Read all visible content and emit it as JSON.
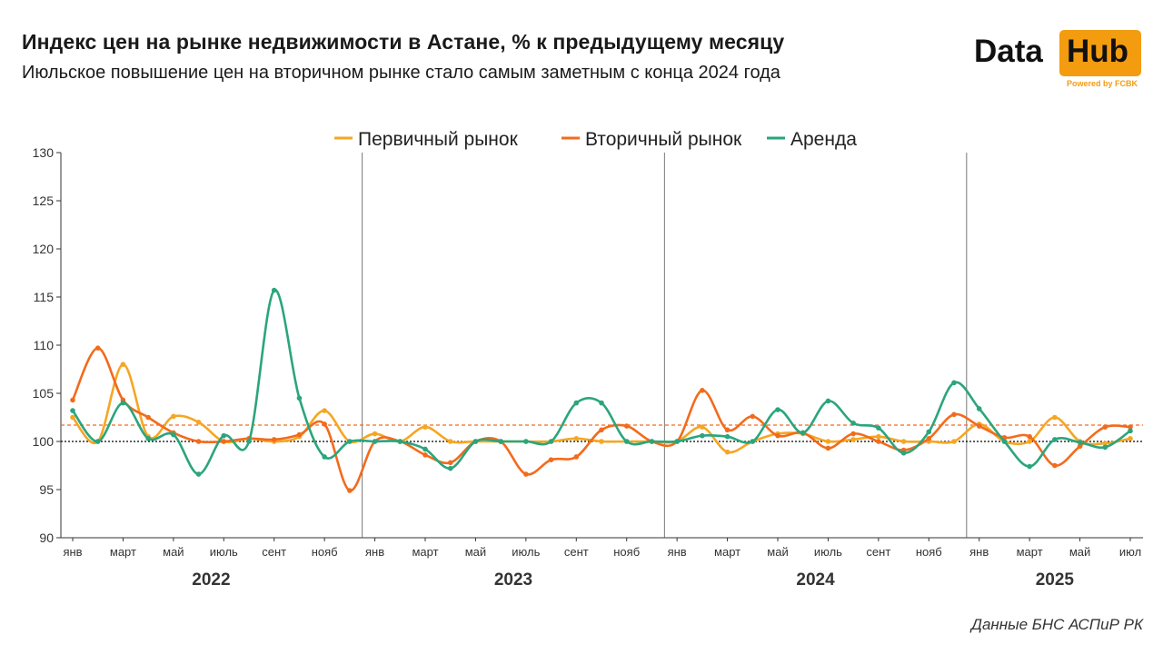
{
  "header": {
    "title": "Индекс цен на рынке недвижимости в Астане, % к предыдущему месяцу",
    "subtitle": "Июльское повышение цен на вторичном рынке стало самым заметным с конца 2024 года"
  },
  "logo": {
    "word": "Data",
    "box_text": "Hub",
    "powered": "Powered by FCBK",
    "accent_color": "#f39c0f"
  },
  "source": "Данные БНС АСПиР РК",
  "chart_data": {
    "type": "line",
    "ylim": [
      90,
      130
    ],
    "yticks": [
      90,
      95,
      100,
      105,
      110,
      115,
      120,
      125,
      130
    ],
    "x_start": "2022-01",
    "x_end": "2025-07",
    "month_ticks": [
      "янв",
      "март",
      "май",
      "июль",
      "сент",
      "нояб"
    ],
    "month_ticks_2025": [
      "янв",
      "март",
      "май",
      "июл"
    ],
    "years": [
      "2022",
      "2023",
      "2024",
      "2025"
    ],
    "grid": false,
    "legend_position": "top",
    "reference_lines": [
      {
        "value": 100,
        "style": "dotted",
        "color": "#000000"
      },
      {
        "value": 101.7,
        "style": "dashed",
        "color": "#f26b1d"
      }
    ],
    "series": [
      {
        "name": "Первичный рынок",
        "color": "#f5a623",
        "values": [
          102.5,
          100.0,
          108.0,
          100.5,
          102.6,
          102.0,
          100.0,
          100.3,
          100.0,
          100.5,
          103.2,
          100.0,
          100.8,
          100.0,
          101.5,
          100.0,
          100.0,
          100.0,
          100.0,
          100.0,
          100.3,
          100.0,
          100.0,
          100.0,
          100.0,
          101.5,
          98.9,
          100.0,
          100.8,
          100.8,
          100.0,
          100.2,
          100.5,
          100.0,
          100.0,
          100.0,
          101.8,
          100.0,
          100.0,
          102.5,
          100.0,
          99.8,
          100.3
        ]
      },
      {
        "name": "Вторичный рынок",
        "color": "#f26b1d",
        "values": [
          104.3,
          109.7,
          104.3,
          102.5,
          100.9,
          100.0,
          100.0,
          100.3,
          100.2,
          100.7,
          101.8,
          94.9,
          100.0,
          100.0,
          98.6,
          97.8,
          100.0,
          100.0,
          96.6,
          98.1,
          98.4,
          101.2,
          101.6,
          100.0,
          100.0,
          105.3,
          101.2,
          102.6,
          100.6,
          100.9,
          99.3,
          100.8,
          100.0,
          99.1,
          100.3,
          102.8,
          101.6,
          100.4,
          100.5,
          97.5,
          99.5,
          101.5,
          101.5
        ]
      },
      {
        "name": "Аренда",
        "color": "#2aa57d",
        "values": [
          103.2,
          100.0,
          104.0,
          100.3,
          100.7,
          96.6,
          100.6,
          100.0,
          115.7,
          104.5,
          98.4,
          100.0,
          100.0,
          100.0,
          99.2,
          97.2,
          100.0,
          100.0,
          100.0,
          100.0,
          104.0,
          104.0,
          100.0,
          100.0,
          100.0,
          100.6,
          100.5,
          100.0,
          103.3,
          100.9,
          104.2,
          101.9,
          101.4,
          98.8,
          101.0,
          106.1,
          103.4,
          100.0,
          97.4,
          100.2,
          99.9,
          99.4,
          101.1
        ]
      }
    ]
  }
}
